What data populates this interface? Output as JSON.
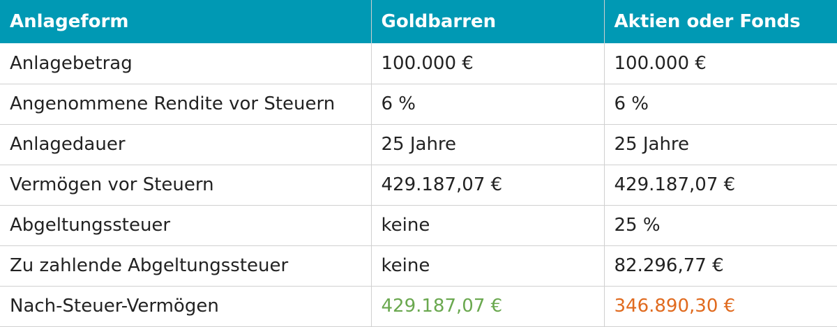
{
  "table": {
    "header": [
      "Anlageform",
      "Goldbarren",
      "Aktien oder Fonds"
    ],
    "rows": [
      [
        "Anlagebetrag",
        "100.000 €",
        "100.000 €"
      ],
      [
        "Angenommene Rendite vor Steuern",
        "6 %",
        "6 %"
      ],
      [
        "Anlagedauer",
        "25 Jahre",
        "25 Jahre"
      ],
      [
        "Vermögen vor Steuern",
        "429.187,07 €",
        "429.187,07 €"
      ],
      [
        "Abgeltungssteuer",
        "keine",
        "25 %"
      ],
      [
        "Zu zahlende Abgeltungssteuer",
        "keine",
        "82.296,77 €"
      ],
      [
        "Nach-Steuer-Vermögen",
        "429.187,07 €",
        "346.890,30 €"
      ]
    ]
  }
}
